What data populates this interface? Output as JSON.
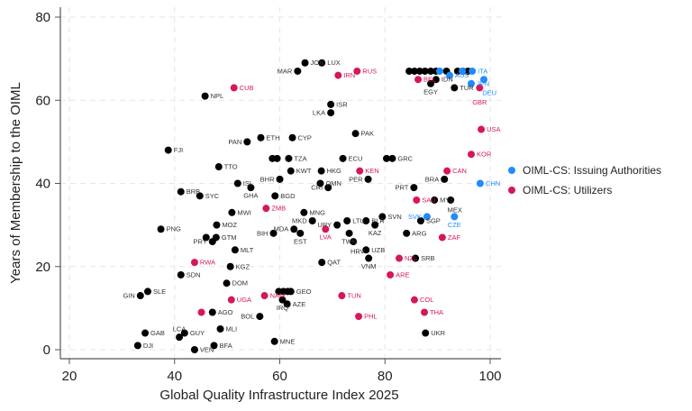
{
  "chart_data": {
    "type": "scatter",
    "xlabel": "Global Quality Infrastructure Index 2025",
    "ylabel": "Years of Membership to the OIML",
    "xlim": [
      20,
      100
    ],
    "ylim": [
      0,
      80
    ],
    "xticks": [
      20,
      40,
      60,
      80,
      100
    ],
    "yticks": [
      0,
      20,
      40,
      60,
      80
    ],
    "grid": true,
    "legend_position": "right",
    "colors": {
      "other": "#000000",
      "issuing": "#1f8bff",
      "utilizers": "#d6175a"
    },
    "legend": [
      {
        "key": "issuing",
        "label": "OIML-CS: Issuing Authorities"
      },
      {
        "key": "utilizers",
        "label": "OIML-CS: Utilizers"
      }
    ],
    "points": [
      {
        "label": "",
        "x": 84.6,
        "y": 67,
        "g": "other"
      },
      {
        "label": "",
        "x": 85.6,
        "y": 67,
        "g": "other"
      },
      {
        "label": "",
        "x": 86.6,
        "y": 67,
        "g": "other"
      },
      {
        "label": "",
        "x": 87.6,
        "y": 67,
        "g": "other"
      },
      {
        "label": "",
        "x": 88.7,
        "y": 67,
        "g": "other"
      },
      {
        "label": "",
        "x": 89.7,
        "y": 67,
        "g": "other"
      },
      {
        "label": "",
        "x": 91.7,
        "y": 67,
        "g": "other"
      },
      {
        "label": "",
        "x": 93.8,
        "y": 67,
        "g": "other"
      },
      {
        "label": "",
        "x": 94.8,
        "y": 67,
        "g": "other"
      },
      {
        "label": "",
        "x": 95.8,
        "y": 67,
        "g": "other"
      },
      {
        "label": "",
        "x": 90.4,
        "y": 67,
        "g": "issuing"
      },
      {
        "label": "AUS",
        "x": 92.3,
        "y": 66,
        "g": "issuing"
      },
      {
        "label": "",
        "x": 94.7,
        "y": 67,
        "g": "issuing"
      },
      {
        "label": "ITA",
        "x": 96.6,
        "y": 67,
        "g": "issuing"
      },
      {
        "label": "BEL",
        "x": 86.3,
        "y": 65,
        "g": "utilizers"
      },
      {
        "label": "IDN",
        "x": 89.7,
        "y": 65,
        "g": "other"
      },
      {
        "label": "EGY",
        "x": 88.7,
        "y": 64,
        "g": "other"
      },
      {
        "label": "TUR",
        "x": 93.2,
        "y": 63,
        "g": "other"
      },
      {
        "label": "JPN",
        "x": 96.4,
        "y": 64,
        "g": "issuing"
      },
      {
        "label": "DEU",
        "x": 98.8,
        "y": 65,
        "g": "issuing"
      },
      {
        "label": "GBR",
        "x": 98.0,
        "y": 63,
        "g": "utilizers"
      },
      {
        "label": "JOR",
        "x": 64.8,
        "y": 69,
        "g": "other"
      },
      {
        "label": "LUX",
        "x": 68.0,
        "y": 69,
        "g": "other"
      },
      {
        "label": "MAR",
        "x": 63.4,
        "y": 67,
        "g": "other"
      },
      {
        "label": "IRN",
        "x": 71.1,
        "y": 66,
        "g": "utilizers"
      },
      {
        "label": "RUS",
        "x": 74.7,
        "y": 67,
        "g": "utilizers"
      },
      {
        "label": "CUB",
        "x": 51.3,
        "y": 63,
        "g": "utilizers"
      },
      {
        "label": "NPL",
        "x": 45.8,
        "y": 61,
        "g": "other"
      },
      {
        "label": "ISR",
        "x": 69.7,
        "y": 59,
        "g": "other"
      },
      {
        "label": "LKA",
        "x": 69.7,
        "y": 57,
        "g": "other"
      },
      {
        "label": "PAK",
        "x": 74.4,
        "y": 52,
        "g": "other"
      },
      {
        "label": "ETH",
        "x": 56.4,
        "y": 51,
        "g": "other"
      },
      {
        "label": "CYP",
        "x": 62.4,
        "y": 51,
        "g": "other"
      },
      {
        "label": "PAN",
        "x": 53.8,
        "y": 50,
        "g": "other"
      },
      {
        "label": "FJI",
        "x": 38.8,
        "y": 48,
        "g": "other"
      },
      {
        "label": "USA",
        "x": 98.3,
        "y": 53,
        "g": "utilizers"
      },
      {
        "label": "KOR",
        "x": 96.4,
        "y": 47,
        "g": "utilizers"
      },
      {
        "label": "ECU",
        "x": 72.0,
        "y": 46,
        "g": "other"
      },
      {
        "label": "",
        "x": 58.6,
        "y": 46,
        "g": "other"
      },
      {
        "label": "",
        "x": 59.5,
        "y": 46,
        "g": "other"
      },
      {
        "label": "TZA",
        "x": 61.7,
        "y": 46,
        "g": "other"
      },
      {
        "label": "",
        "x": 80.3,
        "y": 46,
        "g": "other"
      },
      {
        "label": "GRC",
        "x": 81.4,
        "y": 46,
        "g": "other"
      },
      {
        "label": "TTO",
        "x": 48.4,
        "y": 44,
        "g": "other"
      },
      {
        "label": "KWT",
        "x": 62.1,
        "y": 43,
        "g": "other"
      },
      {
        "label": "HKG",
        "x": 67.9,
        "y": 43,
        "g": "other"
      },
      {
        "label": "KEN",
        "x": 75.2,
        "y": 43,
        "g": "utilizers"
      },
      {
        "label": "CAN",
        "x": 91.8,
        "y": 43,
        "g": "utilizers"
      },
      {
        "label": "BHR",
        "x": 60.0,
        "y": 41,
        "g": "other"
      },
      {
        "label": "OMN",
        "x": 67.7,
        "y": 40,
        "g": "other"
      },
      {
        "label": "PER",
        "x": 76.8,
        "y": 41,
        "g": "other"
      },
      {
        "label": "BRA",
        "x": 91.3,
        "y": 41,
        "g": "other"
      },
      {
        "label": "CHN",
        "x": 98.1,
        "y": 40,
        "g": "issuing"
      },
      {
        "label": "ISL",
        "x": 52.0,
        "y": 40,
        "g": "other"
      },
      {
        "label": "GHA",
        "x": 54.5,
        "y": 39,
        "g": "other"
      },
      {
        "label": "CRI",
        "x": 69.2,
        "y": 39,
        "g": "other"
      },
      {
        "label": "PRT",
        "x": 85.5,
        "y": 39,
        "g": "other"
      },
      {
        "label": "BRB",
        "x": 41.2,
        "y": 38,
        "g": "other"
      },
      {
        "label": "SYC",
        "x": 44.8,
        "y": 37,
        "g": "other"
      },
      {
        "label": "BGD",
        "x": 59.1,
        "y": 37,
        "g": "other"
      },
      {
        "label": "SAU",
        "x": 86.0,
        "y": 36,
        "g": "utilizers"
      },
      {
        "label": "MYS",
        "x": 89.4,
        "y": 36,
        "g": "other"
      },
      {
        "label": "MEX",
        "x": 92.5,
        "y": 36,
        "g": "other"
      },
      {
        "label": "ZMB",
        "x": 57.4,
        "y": 34,
        "g": "utilizers"
      },
      {
        "label": "MWI",
        "x": 50.9,
        "y": 33,
        "g": "other"
      },
      {
        "label": "MNG",
        "x": 64.6,
        "y": 33,
        "g": "other"
      },
      {
        "label": "MKD",
        "x": 66.2,
        "y": 31,
        "g": "other"
      },
      {
        "label": "SVN",
        "x": 79.5,
        "y": 32,
        "g": "other"
      },
      {
        "label": "SVK",
        "x": 88.0,
        "y": 32,
        "g": "issuing"
      },
      {
        "label": "CZE",
        "x": 93.2,
        "y": 32,
        "g": "issuing"
      },
      {
        "label": "LTU",
        "x": 72.8,
        "y": 31,
        "g": "other"
      },
      {
        "label": "BLR",
        "x": 76.4,
        "y": 31,
        "g": "other"
      },
      {
        "label": "URY",
        "x": 70.9,
        "y": 30,
        "g": "other"
      },
      {
        "label": "KAZ",
        "x": 78.1,
        "y": 30,
        "g": "other"
      },
      {
        "label": "SGP",
        "x": 86.8,
        "y": 31,
        "g": "other"
      },
      {
        "label": "MOZ",
        "x": 48.0,
        "y": 30,
        "g": "other"
      },
      {
        "label": "PNG",
        "x": 37.4,
        "y": 29,
        "g": "other"
      },
      {
        "label": "MDA",
        "x": 62.7,
        "y": 29,
        "g": "other"
      },
      {
        "label": "LVA",
        "x": 68.7,
        "y": 29,
        "g": "utilizers"
      },
      {
        "label": "BIH",
        "x": 58.8,
        "y": 28,
        "g": "other"
      },
      {
        "label": "EST",
        "x": 63.9,
        "y": 28,
        "g": "other"
      },
      {
        "label": "TWN",
        "x": 73.2,
        "y": 28,
        "g": "other"
      },
      {
        "label": "ARG",
        "x": 84.1,
        "y": 28,
        "g": "other"
      },
      {
        "label": "ZAF",
        "x": 90.9,
        "y": 27,
        "g": "utilizers"
      },
      {
        "label": "",
        "x": 46.0,
        "y": 27,
        "g": "other"
      },
      {
        "label": "GTM",
        "x": 47.9,
        "y": 27,
        "g": "other"
      },
      {
        "label": "PRY",
        "x": 47.2,
        "y": 26,
        "g": "other"
      },
      {
        "label": "HRV",
        "x": 74.0,
        "y": 26,
        "g": "other"
      },
      {
        "label": "MLT",
        "x": 51.5,
        "y": 24,
        "g": "other"
      },
      {
        "label": "UZB",
        "x": 76.4,
        "y": 24,
        "g": "other"
      },
      {
        "label": "VNM",
        "x": 76.9,
        "y": 22,
        "g": "other"
      },
      {
        "label": "NZL",
        "x": 82.7,
        "y": 22,
        "g": "utilizers"
      },
      {
        "label": "SRB",
        "x": 85.8,
        "y": 22,
        "g": "other"
      },
      {
        "label": "QAT",
        "x": 68.0,
        "y": 21,
        "g": "other"
      },
      {
        "label": "RWA",
        "x": 43.8,
        "y": 21,
        "g": "utilizers"
      },
      {
        "label": "KGZ",
        "x": 50.6,
        "y": 20,
        "g": "other"
      },
      {
        "label": "ARE",
        "x": 81.0,
        "y": 18,
        "g": "utilizers"
      },
      {
        "label": "SDN",
        "x": 41.2,
        "y": 18,
        "g": "other"
      },
      {
        "label": "DOM",
        "x": 49.9,
        "y": 16,
        "g": "other"
      },
      {
        "label": "SLE",
        "x": 34.9,
        "y": 14,
        "g": "other"
      },
      {
        "label": "GIN",
        "x": 33.5,
        "y": 13,
        "g": "other"
      },
      {
        "label": "",
        "x": 59.8,
        "y": 14,
        "g": "other"
      },
      {
        "label": "",
        "x": 60.7,
        "y": 14,
        "g": "other"
      },
      {
        "label": "",
        "x": 61.5,
        "y": 14,
        "g": "other"
      },
      {
        "label": "GEO",
        "x": 62.1,
        "y": 14,
        "g": "other"
      },
      {
        "label": "TUN",
        "x": 71.8,
        "y": 13,
        "g": "utilizers"
      },
      {
        "label": "UGA",
        "x": 50.8,
        "y": 12,
        "g": "utilizers"
      },
      {
        "label": "NAM",
        "x": 57.1,
        "y": 13,
        "g": "utilizers"
      },
      {
        "label": "IRQ",
        "x": 60.5,
        "y": 12,
        "g": "other"
      },
      {
        "label": "AZE",
        "x": 61.4,
        "y": 11,
        "g": "other"
      },
      {
        "label": "COL",
        "x": 85.6,
        "y": 12,
        "g": "utilizers"
      },
      {
        "label": "",
        "x": 45.1,
        "y": 9,
        "g": "utilizers"
      },
      {
        "label": "AGO",
        "x": 47.2,
        "y": 9,
        "g": "other"
      },
      {
        "label": "THA",
        "x": 87.5,
        "y": 9,
        "g": "utilizers"
      },
      {
        "label": "BOL",
        "x": 56.2,
        "y": 8,
        "g": "other"
      },
      {
        "label": "PHL",
        "x": 75.0,
        "y": 8,
        "g": "utilizers"
      },
      {
        "label": "MLI",
        "x": 48.7,
        "y": 5,
        "g": "other"
      },
      {
        "label": "UKR",
        "x": 87.7,
        "y": 4,
        "g": "other"
      },
      {
        "label": "GAB",
        "x": 34.4,
        "y": 4,
        "g": "other"
      },
      {
        "label": "GUY",
        "x": 41.9,
        "y": 4,
        "g": "other"
      },
      {
        "label": "LCA",
        "x": 40.9,
        "y": 3,
        "g": "other"
      },
      {
        "label": "MNE",
        "x": 59.0,
        "y": 2,
        "g": "other"
      },
      {
        "label": "DJI",
        "x": 33.0,
        "y": 1,
        "g": "other"
      },
      {
        "label": "BFA",
        "x": 47.5,
        "y": 1,
        "g": "other"
      },
      {
        "label": "VEN",
        "x": 43.8,
        "y": 0,
        "g": "other"
      }
    ]
  }
}
